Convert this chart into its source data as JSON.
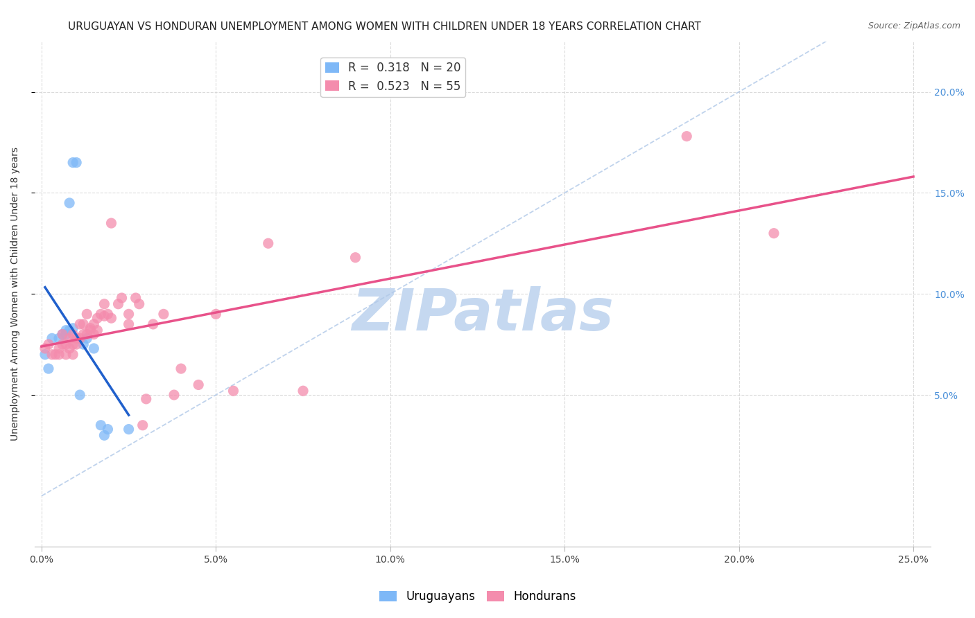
{
  "title": "URUGUAYAN VS HONDURAN UNEMPLOYMENT AMONG WOMEN WITH CHILDREN UNDER 18 YEARS CORRELATION CHART",
  "source": "Source: ZipAtlas.com",
  "ylabel": "Unemployment Among Women with Children Under 18 years",
  "watermark": "ZIPatlas",
  "x_tick_labels": [
    "0.0%",
    "5.0%",
    "10.0%",
    "15.0%",
    "20.0%",
    "25.0%"
  ],
  "x_ticks": [
    0.0,
    0.05,
    0.1,
    0.15,
    0.2,
    0.25
  ],
  "y_ticks": [
    0.05,
    0.1,
    0.15,
    0.2
  ],
  "y_tick_labels_right": [
    "5.0%",
    "10.0%",
    "15.0%",
    "20.0%"
  ],
  "xlim": [
    -0.002,
    0.255
  ],
  "ylim": [
    -0.025,
    0.225
  ],
  "uruguayan_color": "#7eb8f7",
  "honduran_color": "#f48cad",
  "uruguayan_line_color": "#2060cc",
  "honduran_line_color": "#e8528a",
  "R_uruguayan": 0.318,
  "N_uruguayan": 20,
  "R_honduran": 0.523,
  "N_honduran": 55,
  "uruguayan_x": [
    0.001,
    0.002,
    0.003,
    0.005,
    0.006,
    0.007,
    0.007,
    0.008,
    0.008,
    0.009,
    0.009,
    0.01,
    0.011,
    0.012,
    0.013,
    0.015,
    0.017,
    0.018,
    0.019,
    0.025
  ],
  "uruguayan_y": [
    0.07,
    0.063,
    0.078,
    0.078,
    0.08,
    0.08,
    0.082,
    0.082,
    0.145,
    0.083,
    0.165,
    0.165,
    0.05,
    0.075,
    0.078,
    0.073,
    0.035,
    0.03,
    0.033,
    0.033
  ],
  "honduran_x": [
    0.001,
    0.002,
    0.003,
    0.004,
    0.005,
    0.005,
    0.006,
    0.006,
    0.007,
    0.007,
    0.008,
    0.008,
    0.009,
    0.009,
    0.009,
    0.01,
    0.01,
    0.011,
    0.011,
    0.012,
    0.012,
    0.013,
    0.013,
    0.014,
    0.014,
    0.015,
    0.015,
    0.016,
    0.016,
    0.017,
    0.018,
    0.018,
    0.019,
    0.02,
    0.02,
    0.022,
    0.023,
    0.025,
    0.025,
    0.027,
    0.028,
    0.029,
    0.03,
    0.032,
    0.035,
    0.038,
    0.04,
    0.045,
    0.05,
    0.055,
    0.065,
    0.075,
    0.09,
    0.185,
    0.21
  ],
  "honduran_y": [
    0.073,
    0.075,
    0.07,
    0.07,
    0.073,
    0.07,
    0.075,
    0.08,
    0.07,
    0.075,
    0.078,
    0.073,
    0.07,
    0.075,
    0.08,
    0.075,
    0.078,
    0.078,
    0.085,
    0.085,
    0.08,
    0.08,
    0.09,
    0.082,
    0.083,
    0.08,
    0.085,
    0.082,
    0.088,
    0.09,
    0.089,
    0.095,
    0.09,
    0.088,
    0.135,
    0.095,
    0.098,
    0.085,
    0.09,
    0.098,
    0.095,
    0.035,
    0.048,
    0.085,
    0.09,
    0.05,
    0.063,
    0.055,
    0.09,
    0.052,
    0.125,
    0.052,
    0.118,
    0.178,
    0.13
  ],
  "legend_uruguayan_label": "Uruguayans",
  "legend_honduran_label": "Hondurans",
  "title_fontsize": 11,
  "source_fontsize": 9,
  "label_fontsize": 10,
  "tick_fontsize": 10,
  "legend_fontsize": 12,
  "background_color": "#ffffff",
  "grid_color": "#cccccc",
  "watermark_color": "#c5d8f0",
  "watermark_fontsize": 60,
  "diagonal_color": "#b0c8e8"
}
